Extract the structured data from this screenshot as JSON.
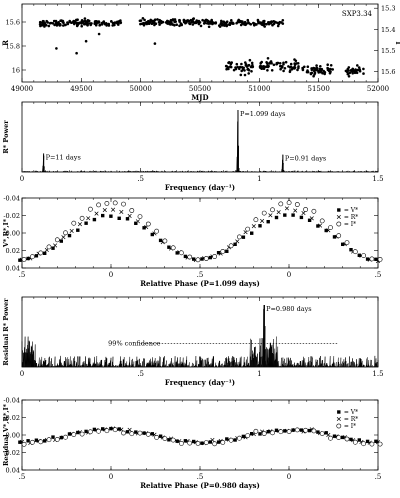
{
  "chart_data": [
    {
      "type": "scatter",
      "annotation": "SXP3.34",
      "xlabel": "MJD",
      "ylabel_left": "R",
      "ylabel_right": "I",
      "xlim": [
        49000,
        52000
      ],
      "ylim": [
        16.1,
        15.45
      ],
      "y2lim": [
        15.65,
        15.28
      ],
      "x_ticks": [
        "49000",
        "49500",
        "50000",
        "50500",
        "51000",
        "51500",
        "52000"
      ],
      "y_ticks": [
        "15.6",
        "15.8",
        "16"
      ],
      "y2_ticks": [
        "15.3",
        "15.4",
        "15.5",
        "15.6"
      ],
      "series": [
        {
          "name": "R",
          "marker": "filled-dot",
          "segments": [
            {
              "x0": 49150,
              "x1": 49840,
              "ymean": 15.61,
              "sd": 0.035
            },
            {
              "x0": 49990,
              "x1": 50640,
              "ymean": 15.6,
              "sd": 0.035
            },
            {
              "x0": 50660,
              "x1": 51200,
              "ymean": 15.61,
              "sd": 0.03
            }
          ],
          "outliers": [
            [
              49290,
              15.82
            ],
            [
              49460,
              15.86
            ],
            [
              49540,
              15.76
            ],
            [
              49650,
              15.7
            ],
            [
              50120,
              15.78
            ]
          ]
        },
        {
          "name": "I",
          "marker": "filled-dot",
          "segments": [
            {
              "x0": 50720,
              "x1": 50950,
              "ymean": 15.58,
              "sd": 0.04
            },
            {
              "x0": 51000,
              "x1": 51330,
              "ymean": 15.57,
              "sd": 0.035
            },
            {
              "x0": 51360,
              "x1": 51620,
              "ymean": 15.59,
              "sd": 0.03
            },
            {
              "x0": 51720,
              "x1": 51880,
              "ymean": 15.6,
              "sd": 0.025
            }
          ]
        }
      ]
    },
    {
      "type": "line",
      "ylabel": "R* Power",
      "xlabel": "Frequency (day⁻¹)",
      "xlim": [
        0,
        1.5
      ],
      "x_ticks": [
        "0",
        ".5",
        "1",
        "1.5"
      ],
      "noise_level": 0.02,
      "peaks": [
        {
          "x": 0.091,
          "height": 0.3,
          "label": "P=11 days"
        },
        {
          "x": 0.91,
          "height": 1.0,
          "label": "P=1.099 days"
        },
        {
          "x": 1.099,
          "height": 0.28,
          "label": "P=0.91 days"
        }
      ]
    },
    {
      "type": "scatter",
      "ylabel": "V*,R*,I*",
      "xlabel": "Relative Phase (P=1.099 days)",
      "xlim": [
        -0.5,
        1.5
      ],
      "ylim": [
        0.04,
        -0.04
      ],
      "x_ticks": [
        ".5",
        "0",
        ".5",
        "0",
        ".5"
      ],
      "y_ticks": [
        "-0.04",
        "-0.02",
        "0.00",
        "0.02",
        "0.04"
      ],
      "model": {
        "amplitude": 0.028,
        "offset": 0.002
      },
      "legend": [
        "V*",
        "R*",
        "I*"
      ],
      "series": [
        {
          "name": "V*",
          "marker": "filled-square",
          "amp": 0.9,
          "shift": 0.003
        },
        {
          "name": "R*",
          "marker": "cross",
          "amp": 1.0,
          "shift": 0.0
        },
        {
          "name": "I*",
          "marker": "open-circle",
          "amp": 1.15,
          "shift": -0.004
        }
      ]
    },
    {
      "type": "line",
      "ylabel": "Residual R* Power",
      "xlabel": "Frequency (day⁻¹)",
      "xlim": [
        0,
        1.5
      ],
      "x_ticks": [
        "0",
        ".5",
        "1",
        "1.5"
      ],
      "noise_level": 0.18,
      "confidence": {
        "level": 0.38,
        "x0": 0.38,
        "x1": 1.33,
        "label": "99% confidence"
      },
      "peaks": [
        {
          "x": 1.02,
          "height": 1.0,
          "label": "P=0.980 days"
        }
      ]
    },
    {
      "type": "scatter",
      "ylabel": "Residual V*,R*,I*",
      "xlabel": "Relative Phase (P=0.980 days)",
      "xlim": [
        -0.5,
        1.5
      ],
      "ylim": [
        0.04,
        -0.04
      ],
      "x_ticks": [
        ".5",
        "0",
        ".5",
        "0",
        ".5"
      ],
      "y_ticks": [
        "-0.04",
        "-0.02",
        "0.00",
        "0.02",
        "0.04"
      ],
      "model": {
        "amplitude": 0.007,
        "offset": 0.001
      },
      "legend": [
        "V*",
        "R*",
        "I*"
      ],
      "series": [
        {
          "name": "V*",
          "marker": "filled-square",
          "amp": 1.0,
          "shift": 0.0
        },
        {
          "name": "R*",
          "marker": "cross",
          "amp": 1.0,
          "shift": 0.0
        },
        {
          "name": "I*",
          "marker": "open-circle",
          "amp": 1.1,
          "shift": 0.001
        }
      ]
    }
  ]
}
